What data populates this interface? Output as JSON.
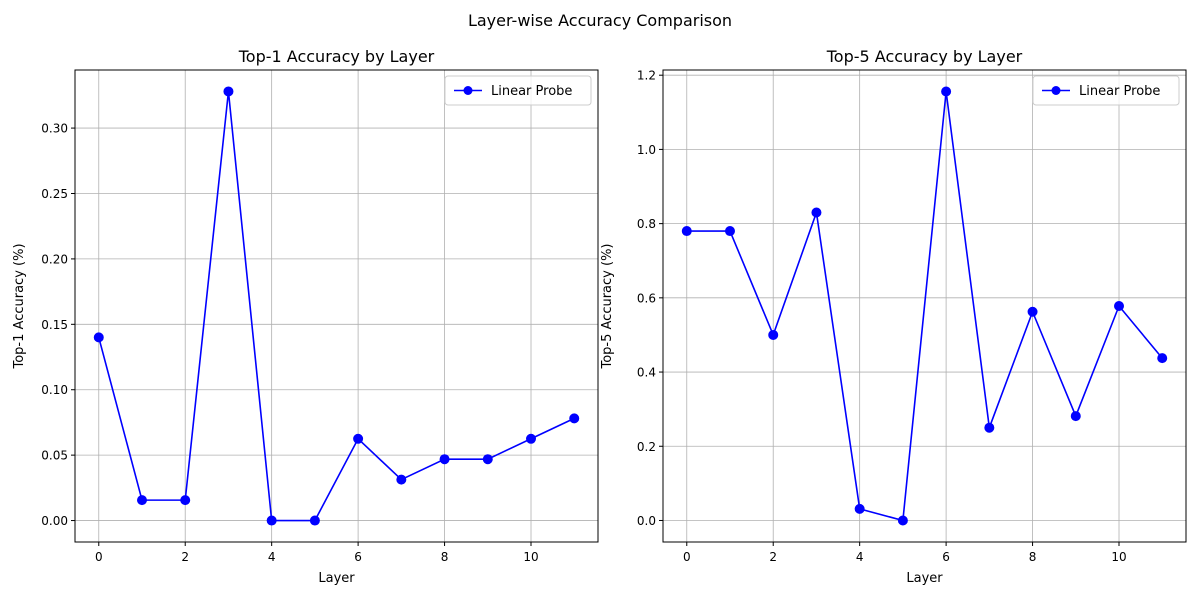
{
  "suptitle": "Layer-wise Accuracy Comparison",
  "chart_data": [
    {
      "type": "line",
      "title": "Top-1 Accuracy by Layer",
      "xlabel": "Layer",
      "ylabel": "Top-1 Accuracy (%)",
      "x": [
        0,
        1,
        2,
        3,
        4,
        5,
        6,
        7,
        8,
        9,
        10,
        11
      ],
      "xticks": [
        0,
        2,
        4,
        6,
        8,
        10
      ],
      "yticks": [
        0.0,
        0.05,
        0.1,
        0.15,
        0.2,
        0.25,
        0.3
      ],
      "ytick_labels": [
        "0.00",
        "0.05",
        "0.10",
        "0.15",
        "0.20",
        "0.25",
        "0.30"
      ],
      "xlim": [
        -0.55,
        11.55
      ],
      "ylim": [
        -0.0164,
        0.3444
      ],
      "grid": true,
      "legend": "upper right",
      "series": [
        {
          "name": "Linear Probe",
          "color": "#0000ff",
          "marker": "circle",
          "values": [
            0.14,
            0.0156,
            0.0156,
            0.328,
            0.0,
            0.0,
            0.0625,
            0.0313,
            0.0469,
            0.0469,
            0.0625,
            0.0781
          ]
        }
      ]
    },
    {
      "type": "line",
      "title": "Top-5 Accuracy by Layer",
      "xlabel": "Layer",
      "ylabel": "Top-5 Accuracy (%)",
      "x": [
        0,
        1,
        2,
        3,
        4,
        5,
        6,
        7,
        8,
        9,
        10,
        11
      ],
      "xticks": [
        0,
        2,
        4,
        6,
        8,
        10
      ],
      "yticks": [
        0.0,
        0.2,
        0.4,
        0.6,
        0.8,
        1.0,
        1.2
      ],
      "ytick_labels": [
        "0.0",
        "0.2",
        "0.4",
        "0.6",
        "0.8",
        "1.0",
        "1.2"
      ],
      "xlim": [
        -0.55,
        11.55
      ],
      "ylim": [
        -0.058,
        1.214
      ],
      "grid": true,
      "legend": "upper right",
      "series": [
        {
          "name": "Linear Probe",
          "color": "#0000ff",
          "marker": "circle",
          "values": [
            0.78,
            0.78,
            0.5,
            0.83,
            0.0312,
            0.0,
            1.156,
            0.25,
            0.5625,
            0.2813,
            0.578,
            0.4375
          ]
        }
      ]
    }
  ]
}
